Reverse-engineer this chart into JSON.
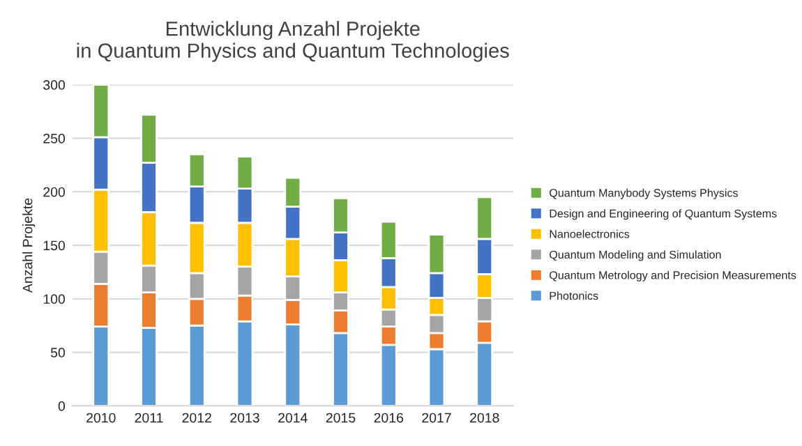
{
  "chart_data": {
    "type": "bar",
    "title": "Entwicklung Anzahl Projekte\nin Quantum Physics and Quantum Technologies",
    "ylabel": "Anzahl Projekte",
    "categories": [
      "2010",
      "2011",
      "2012",
      "2013",
      "2014",
      "2015",
      "2016",
      "2017",
      "2018"
    ],
    "stacked": true,
    "series": [
      {
        "name": "Photonics",
        "color": "#5b9bd5",
        "values": [
          74,
          73,
          75,
          79,
          76,
          68,
          57,
          53,
          59
        ]
      },
      {
        "name": "Quantum Metrology and Precision Measurements",
        "color": "#ed7d31",
        "values": [
          40,
          33,
          25,
          24,
          23,
          21,
          17,
          15,
          20
        ]
      },
      {
        "name": "Quantum Modeling and Simulation",
        "color": "#a5a5a5",
        "values": [
          30,
          25,
          24,
          27,
          22,
          17,
          16,
          17,
          22
        ]
      },
      {
        "name": "Nanoelectronics",
        "color": "#ffc000",
        "values": [
          58,
          50,
          47,
          41,
          35,
          30,
          21,
          16,
          22
        ]
      },
      {
        "name": "Design and Engineering of Quantum Systems",
        "color": "#4472c4",
        "values": [
          49,
          46,
          34,
          32,
          30,
          26,
          27,
          23,
          33
        ]
      },
      {
        "name": "Quantum Manybody Systems Physics",
        "color": "#70ad47",
        "values": [
          49,
          45,
          30,
          30,
          27,
          32,
          34,
          36,
          39
        ]
      }
    ],
    "ylim": [
      0,
      300
    ],
    "yticks": [
      0,
      50,
      100,
      150,
      200,
      250,
      300
    ],
    "grid": "y",
    "legend": "right"
  }
}
